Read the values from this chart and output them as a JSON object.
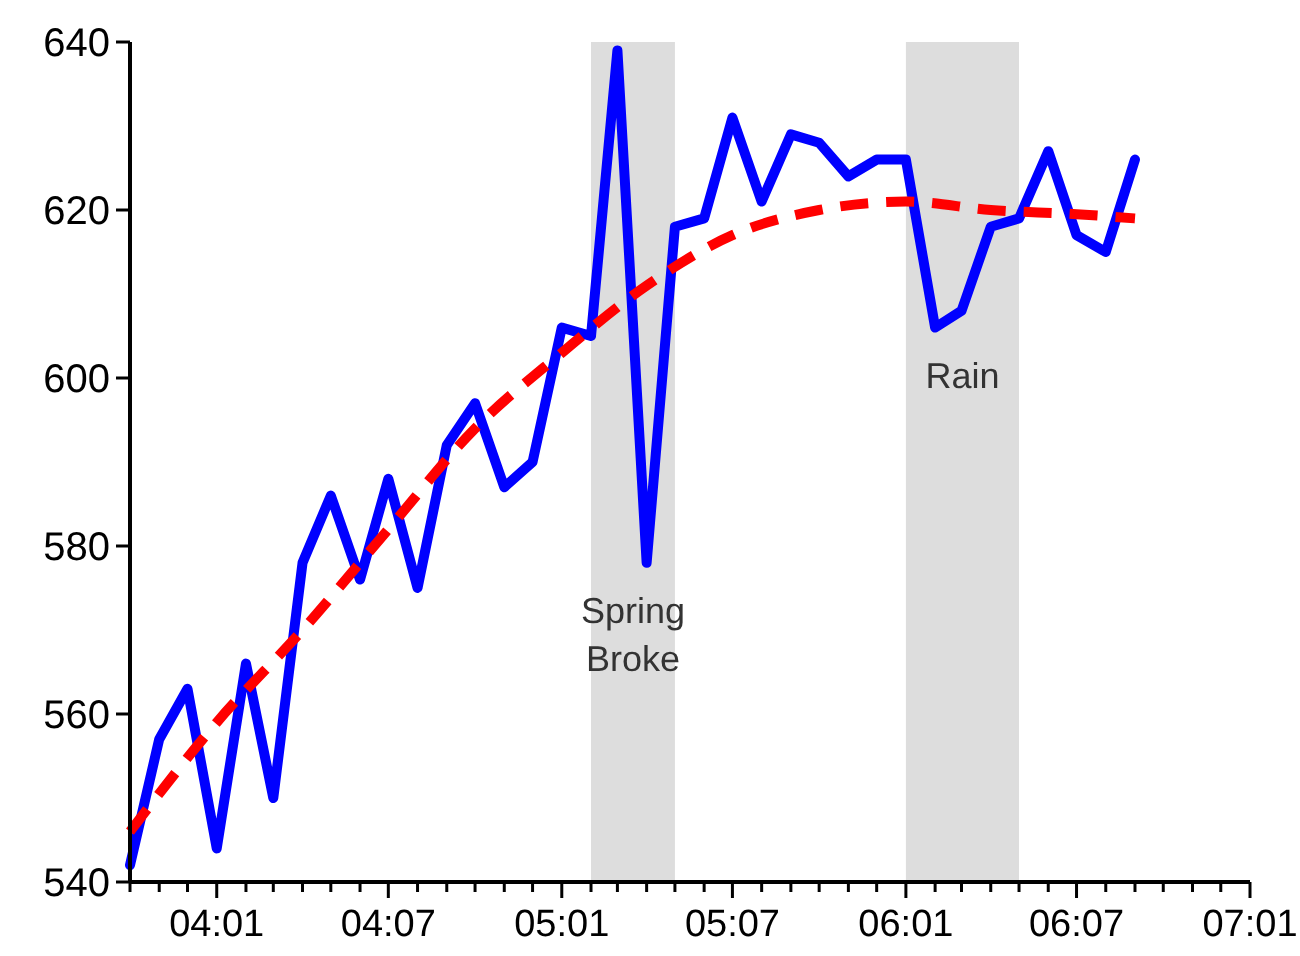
{
  "chart_data": {
    "type": "line",
    "x": [
      "2003-10",
      "2003-11",
      "2003-12",
      "2004-01",
      "2004-02",
      "2004-03",
      "2004-04",
      "2004-05",
      "2004-06",
      "2004-07",
      "2004-08",
      "2004-09",
      "2004-10",
      "2004-11",
      "2004-12",
      "2005-01",
      "2005-02",
      "2005-03",
      "2005-04",
      "2005-05",
      "2005-06",
      "2005-07",
      "2005-08",
      "2005-09",
      "2005-10",
      "2005-11",
      "2005-12",
      "2006-01",
      "2006-02",
      "2006-03",
      "2006-04",
      "2006-05",
      "2006-06",
      "2006-07",
      "2006-08",
      "2006-09"
    ],
    "series": [
      {
        "color": "#0000ff",
        "line_style": "solid",
        "values": [
          542,
          557,
          563,
          544,
          566,
          550,
          578,
          586,
          576,
          588,
          575,
          592,
          597,
          587,
          590,
          606,
          605,
          639,
          578,
          618,
          619,
          631,
          621,
          629,
          628,
          624,
          626,
          626,
          606,
          608,
          618,
          619,
          627,
          617,
          615,
          626
        ]
      },
      {
        "type": "line",
        "color": "#ff0000",
        "line_style": "dashed",
        "x": [
          "2003-10",
          "2004-01",
          "2004-04",
          "2004-07",
          "2004-10",
          "2005-01",
          "2005-04",
          "2005-07",
          "2005-10",
          "2006-01",
          "2006-04",
          "2006-07",
          "2006-09"
        ],
        "values": [
          546,
          559,
          570,
          582,
          594,
          603,
          611,
          617,
          620,
          621,
          620,
          619.5,
          619
        ]
      }
    ],
    "xlim": [
      "2003-10",
      "2007-01"
    ],
    "xticks": [
      {
        "value": "2003-10",
        "label": null
      },
      {
        "value": "2003-11",
        "label": null
      },
      {
        "value": "2003-12",
        "label": null
      },
      {
        "value": "2004-01",
        "label": "04:01"
      },
      {
        "value": "2004-02",
        "label": null
      },
      {
        "value": "2004-03",
        "label": null
      },
      {
        "value": "2004-04",
        "label": null
      },
      {
        "value": "2004-05",
        "label": null
      },
      {
        "value": "2004-06",
        "label": null
      },
      {
        "value": "2004-07",
        "label": "04:07"
      },
      {
        "value": "2004-08",
        "label": null
      },
      {
        "value": "2004-09",
        "label": null
      },
      {
        "value": "2004-10",
        "label": null
      },
      {
        "value": "2004-11",
        "label": null
      },
      {
        "value": "2004-12",
        "label": null
      },
      {
        "value": "2005-01",
        "label": "05:01"
      },
      {
        "value": "2005-02",
        "label": null
      },
      {
        "value": "2005-03",
        "label": null
      },
      {
        "value": "2005-04",
        "label": null
      },
      {
        "value": "2005-05",
        "label": null
      },
      {
        "value": "2005-06",
        "label": null
      },
      {
        "value": "2005-07",
        "label": "05:07"
      },
      {
        "value": "2005-08",
        "label": null
      },
      {
        "value": "2005-09",
        "label": null
      },
      {
        "value": "2005-10",
        "label": null
      },
      {
        "value": "2005-11",
        "label": null
      },
      {
        "value": "2005-12",
        "label": null
      },
      {
        "value": "2006-01",
        "label": "06:01"
      },
      {
        "value": "2006-02",
        "label": null
      },
      {
        "value": "2006-03",
        "label": null
      },
      {
        "value": "2006-04",
        "label": null
      },
      {
        "value": "2006-05",
        "label": null
      },
      {
        "value": "2006-06",
        "label": null
      },
      {
        "value": "2006-07",
        "label": "06:07"
      },
      {
        "value": "2006-08",
        "label": null
      },
      {
        "value": "2006-09",
        "label": null
      },
      {
        "value": "2006-10",
        "label": null
      },
      {
        "value": "2006-11",
        "label": null
      },
      {
        "value": "2006-12",
        "label": null
      },
      {
        "value": "2007-01",
        "label": "07:01"
      }
    ],
    "ylim": [
      540,
      640
    ],
    "yticks": [
      540,
      560,
      580,
      600,
      620,
      640
    ],
    "grid": false,
    "marker": "none",
    "bands": [
      {
        "axis": "x",
        "from": "2005-02",
        "to": "2005-05",
        "label": "Spring\nBroke",
        "color": "#dddddd"
      },
      {
        "axis": "x",
        "from": "2006-01",
        "to": "2006-05",
        "label": "Rain",
        "color": "#dddddd"
      }
    ]
  }
}
